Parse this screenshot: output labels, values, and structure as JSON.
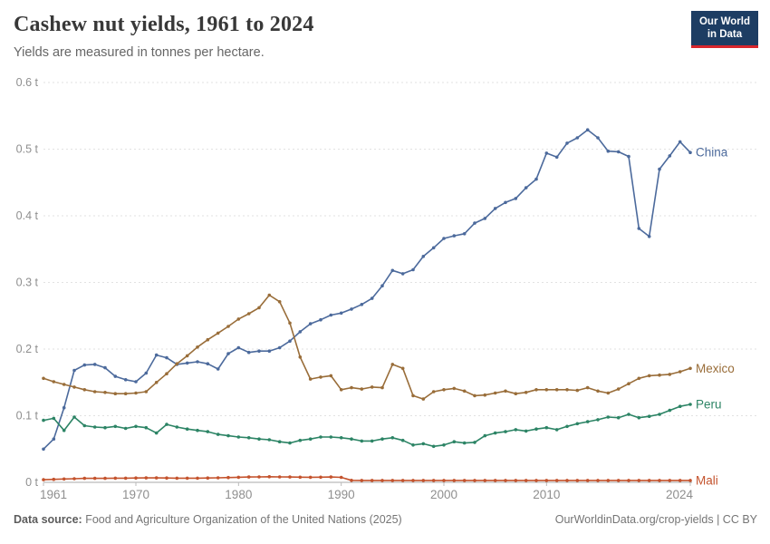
{
  "header": {
    "title": "Cashew nut yields, 1961 to 2024",
    "subtitle": "Yields are measured in tonnes per hectare.",
    "logo_line1": "Our World",
    "logo_line2": "in Data",
    "logo_bg": "#1d3d63",
    "logo_accent": "#d8262c"
  },
  "footer": {
    "source_label": "Data source:",
    "source_text": " Food and Agriculture Organization of the United Nations (2025)",
    "link_text": "OurWorldinData.org/crop-yields",
    "separator": " | ",
    "license": "CC BY"
  },
  "chart_data": {
    "type": "line",
    "title": "Cashew nut yields, 1961 to 2024",
    "ylabel": "tonnes per hectare",
    "unit": "t",
    "ylim": [
      0,
      0.6
    ],
    "yticks": [
      0,
      0.1,
      0.2,
      0.3,
      0.4,
      0.5,
      0.6
    ],
    "ytick_labels": [
      "0 t",
      "0.1 t",
      "0.2 t",
      "0.3 t",
      "0.4 t",
      "0.5 t",
      "0.6 t"
    ],
    "xticks": [
      1961,
      1970,
      1980,
      1990,
      2000,
      2010,
      2024
    ],
    "grid": "horizontal-dashed",
    "legend_position": "end-of-line",
    "axis_color": "#8f8f8f",
    "grid_color": "#e2e2e2",
    "x": [
      1961,
      1962,
      1963,
      1964,
      1965,
      1966,
      1967,
      1968,
      1969,
      1970,
      1971,
      1972,
      1973,
      1974,
      1975,
      1976,
      1977,
      1978,
      1979,
      1980,
      1981,
      1982,
      1983,
      1984,
      1985,
      1986,
      1987,
      1988,
      1989,
      1990,
      1991,
      1992,
      1993,
      1994,
      1995,
      1996,
      1997,
      1998,
      1999,
      2000,
      2001,
      2002,
      2003,
      2004,
      2005,
      2006,
      2007,
      2008,
      2009,
      2010,
      2011,
      2012,
      2013,
      2014,
      2015,
      2016,
      2017,
      2018,
      2019,
      2020,
      2021,
      2022,
      2023,
      2024
    ],
    "series": [
      {
        "name": "China",
        "color": "#4c6a9c",
        "values": [
          0.05,
          0.065,
          0.112,
          0.168,
          0.176,
          0.177,
          0.172,
          0.159,
          0.154,
          0.151,
          0.164,
          0.191,
          0.187,
          0.177,
          0.179,
          0.181,
          0.178,
          0.17,
          0.193,
          0.202,
          0.195,
          0.197,
          0.197,
          0.202,
          0.212,
          0.226,
          0.238,
          0.244,
          0.251,
          0.254,
          0.26,
          0.267,
          0.276,
          0.295,
          0.318,
          0.313,
          0.319,
          0.339,
          0.352,
          0.366,
          0.37,
          0.373,
          0.389,
          0.396,
          0.411,
          0.42,
          0.426,
          0.442,
          0.455,
          0.494,
          0.488,
          0.509,
          0.517,
          0.529,
          0.517,
          0.497,
          0.496,
          0.489,
          0.381,
          0.369,
          0.47,
          0.49,
          0.511,
          0.495
        ]
      },
      {
        "name": "Mexico",
        "color": "#996d39",
        "values": [
          0.156,
          0.151,
          0.147,
          0.143,
          0.139,
          0.136,
          0.135,
          0.133,
          0.133,
          0.134,
          0.136,
          0.15,
          0.163,
          0.178,
          0.19,
          0.203,
          0.214,
          0.224,
          0.234,
          0.245,
          0.253,
          0.262,
          0.281,
          0.271,
          0.239,
          0.188,
          0.155,
          0.158,
          0.16,
          0.139,
          0.142,
          0.14,
          0.143,
          0.142,
          0.177,
          0.171,
          0.13,
          0.125,
          0.136,
          0.139,
          0.141,
          0.137,
          0.13,
          0.131,
          0.134,
          0.137,
          0.133,
          0.135,
          0.139,
          0.139,
          0.139,
          0.139,
          0.138,
          0.142,
          0.137,
          0.134,
          0.14,
          0.148,
          0.156,
          0.16,
          0.161,
          0.162,
          0.166,
          0.171
        ]
      },
      {
        "name": "Peru",
        "color": "#2c8465",
        "values": [
          0.093,
          0.096,
          0.078,
          0.098,
          0.085,
          0.083,
          0.082,
          0.084,
          0.081,
          0.084,
          0.082,
          0.074,
          0.087,
          0.083,
          0.08,
          0.078,
          0.076,
          0.072,
          0.07,
          0.068,
          0.067,
          0.065,
          0.064,
          0.061,
          0.059,
          0.063,
          0.065,
          0.068,
          0.068,
          0.067,
          0.065,
          0.062,
          0.062,
          0.065,
          0.067,
          0.063,
          0.056,
          0.058,
          0.054,
          0.056,
          0.061,
          0.059,
          0.06,
          0.07,
          0.074,
          0.076,
          0.079,
          0.077,
          0.08,
          0.082,
          0.079,
          0.084,
          0.088,
          0.091,
          0.094,
          0.098,
          0.097,
          0.102,
          0.097,
          0.099,
          0.102,
          0.108,
          0.114,
          0.117
        ]
      },
      {
        "name": "Mali",
        "color": "#c4532d",
        "values": [
          0.004,
          0.0045,
          0.005,
          0.0055,
          0.006,
          0.006,
          0.006,
          0.0062,
          0.0063,
          0.0065,
          0.0066,
          0.0067,
          0.0065,
          0.0063,
          0.0062,
          0.0062,
          0.0065,
          0.0068,
          0.0072,
          0.0076,
          0.008,
          0.0082,
          0.0084,
          0.0082,
          0.008,
          0.0078,
          0.0076,
          0.0078,
          0.008,
          0.0075,
          0.003,
          0.0028,
          0.0028,
          0.0028,
          0.0028,
          0.0028,
          0.0028,
          0.0028,
          0.0028,
          0.0028,
          0.0028,
          0.0028,
          0.0028,
          0.0028,
          0.0028,
          0.0028,
          0.0028,
          0.0028,
          0.0028,
          0.0028,
          0.0028,
          0.0028,
          0.0028,
          0.0028,
          0.0028,
          0.0028,
          0.0028,
          0.0028,
          0.0028,
          0.0028,
          0.0028,
          0.0028,
          0.0028,
          0.0028
        ]
      }
    ]
  }
}
